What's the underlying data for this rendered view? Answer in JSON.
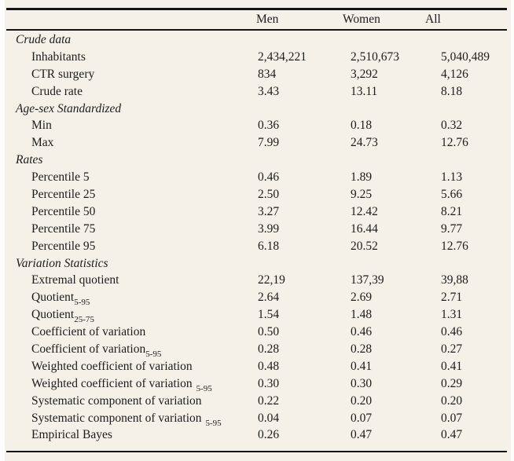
{
  "colors": {
    "page_background": "#f5f1e8",
    "rule_color": "#141414",
    "text_color": "#1c1c1c"
  },
  "table": {
    "header": {
      "row_label": "",
      "columns": [
        "Men",
        "Women",
        "All"
      ]
    },
    "sections": [
      {
        "title": "Crude data",
        "rows": [
          {
            "label": "Inhabitants",
            "sub": "",
            "values": [
              "2,434,221",
              "2,510,673",
              "5,040,489"
            ]
          },
          {
            "label": "CTR surgery",
            "sub": "",
            "values": [
              "834",
              "3,292",
              "4,126"
            ]
          },
          {
            "label": "Crude rate",
            "sub": "",
            "values": [
              "3.43",
              "13.11",
              "8.18"
            ]
          }
        ]
      },
      {
        "title": "Age-sex Standardized",
        "rows": [
          {
            "label": "Min",
            "sub": "",
            "values": [
              "0.36",
              "0.18",
              "0.32"
            ]
          },
          {
            "label": "Max",
            "sub": "",
            "values": [
              "7.99",
              "24.73",
              "12.76"
            ]
          }
        ]
      },
      {
        "title": "Rates",
        "rows": [
          {
            "label": "Percentile 5",
            "sub": "",
            "values": [
              "0.46",
              "1.89",
              "1.13"
            ]
          },
          {
            "label": "Percentile 25",
            "sub": "",
            "values": [
              "2.50",
              "9.25",
              "5.66"
            ]
          },
          {
            "label": "Percentile 50",
            "sub": "",
            "values": [
              "3.27",
              "12.42",
              "8.21"
            ]
          },
          {
            "label": "Percentile 75",
            "sub": "",
            "values": [
              "3.99",
              "16.44",
              "9.77"
            ]
          },
          {
            "label": "Percentile 95",
            "sub": "",
            "values": [
              "6.18",
              "20.52",
              "12.76"
            ]
          }
        ]
      },
      {
        "title": "Variation Statistics",
        "rows": [
          {
            "label": "Extremal quotient",
            "sub": "",
            "values": [
              "22,19",
              "137,39",
              "39,88"
            ]
          },
          {
            "label": "Quotient",
            "sub": "5-95",
            "sub_gap": false,
            "values": [
              "2.64",
              "2.69",
              "2.71"
            ]
          },
          {
            "label": "Quotient",
            "sub": "25-75",
            "sub_gap": false,
            "values": [
              "1.54",
              "1.48",
              "1.31"
            ]
          },
          {
            "label": "Coefficient of variation",
            "sub": "",
            "values": [
              "0.50",
              "0.46",
              "0.46"
            ]
          },
          {
            "label": "Coefficient of variation",
            "sub": "5-95",
            "sub_gap": false,
            "values": [
              "0.28",
              "0.28",
              "0.27"
            ]
          },
          {
            "label": "Weighted coefficient of variation",
            "sub": "",
            "values": [
              "0.48",
              "0.41",
              "0.41"
            ]
          },
          {
            "label": "Weighted coefficient of variation",
            "sub": "5-95",
            "sub_gap": true,
            "values": [
              "0.30",
              "0.30",
              "0.29"
            ]
          },
          {
            "label": "Systematic component of variation",
            "sub": "",
            "values": [
              "0.22",
              "0.20",
              "0.20"
            ]
          },
          {
            "label": "Systematic component of variation",
            "sub": "5-95",
            "sub_gap": true,
            "values": [
              "0.04",
              "0.07",
              "0.07"
            ]
          },
          {
            "label": "Empirical Bayes",
            "sub": "",
            "values": [
              "0.26",
              "0.47",
              "0.47"
            ]
          }
        ]
      }
    ]
  }
}
